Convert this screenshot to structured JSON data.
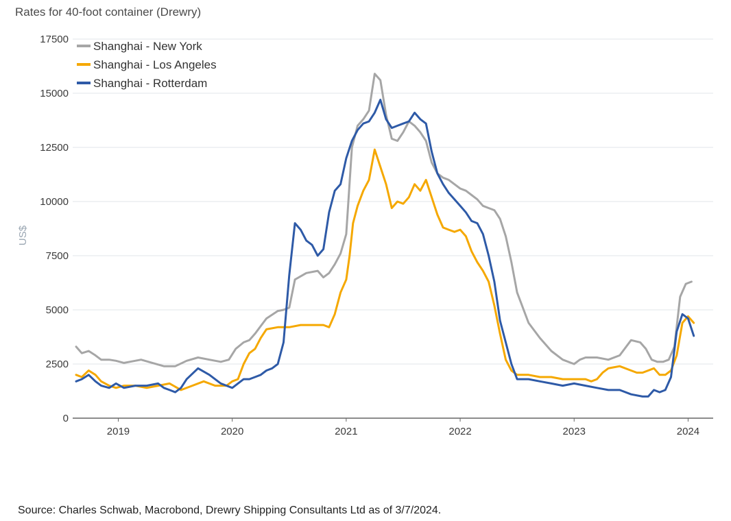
{
  "chart_data": {
    "type": "line",
    "title": "Rates for 40-foot container (Drewry)",
    "ylabel": "US$",
    "xlabel": "",
    "ylim": [
      0,
      17500
    ],
    "xlim": [
      2018.6,
      2024.22
    ],
    "yticks": [
      0,
      2500,
      5000,
      7500,
      10000,
      12500,
      15000,
      17500
    ],
    "yticklabels": [
      "0",
      "2500",
      "5000",
      "7500",
      "10000",
      "12500",
      "15000",
      "17500"
    ],
    "xticks": [
      2019,
      2020,
      2021,
      2022,
      2023,
      2024
    ],
    "xticklabels": [
      "2019",
      "2020",
      "2021",
      "2022",
      "2023",
      "2024"
    ],
    "grid": true,
    "legend_position": "top-left",
    "series": [
      {
        "name": "Shanghai - New York",
        "color": "#a6a6a6",
        "x": [
          2018.63,
          2018.68,
          2018.74,
          2018.8,
          2018.85,
          2018.92,
          2018.98,
          2019.05,
          2019.1,
          2019.2,
          2019.3,
          2019.4,
          2019.5,
          2019.6,
          2019.7,
          2019.8,
          2019.9,
          2019.97,
          2020.03,
          2020.1,
          2020.15,
          2020.2,
          2020.3,
          2020.4,
          2020.45,
          2020.5,
          2020.55,
          2020.65,
          2020.75,
          2020.8,
          2020.85,
          2020.9,
          2020.95,
          2021.0,
          2021.05,
          2021.1,
          2021.15,
          2021.2,
          2021.25,
          2021.3,
          2021.35,
          2021.4,
          2021.45,
          2021.5,
          2021.55,
          2021.6,
          2021.65,
          2021.7,
          2021.75,
          2021.8,
          2021.85,
          2021.9,
          2021.95,
          2022.0,
          2022.05,
          2022.1,
          2022.15,
          2022.2,
          2022.25,
          2022.3,
          2022.35,
          2022.4,
          2022.45,
          2022.5,
          2022.6,
          2022.7,
          2022.8,
          2022.9,
          2023.0,
          2023.05,
          2023.1,
          2023.15,
          2023.2,
          2023.3,
          2023.4,
          2023.5,
          2023.58,
          2023.63,
          2023.68,
          2023.73,
          2023.78,
          2023.83,
          2023.88,
          2023.93,
          2023.98,
          2024.03
        ],
        "y": [
          3300,
          3000,
          3100,
          2900,
          2700,
          2700,
          2650,
          2550,
          2600,
          2700,
          2550,
          2400,
          2400,
          2650,
          2800,
          2700,
          2600,
          2700,
          3200,
          3500,
          3600,
          3900,
          4600,
          4950,
          5000,
          5100,
          6400,
          6700,
          6800,
          6500,
          6700,
          7100,
          7600,
          8500,
          12500,
          13500,
          13800,
          14200,
          15900,
          15600,
          14000,
          12900,
          12800,
          13200,
          13700,
          13500,
          13200,
          12800,
          11800,
          11300,
          11100,
          11000,
          10800,
          10600,
          10500,
          10300,
          10100,
          9800,
          9700,
          9600,
          9200,
          8400,
          7200,
          5800,
          4400,
          3700,
          3100,
          2700,
          2500,
          2700,
          2800,
          2800,
          2800,
          2700,
          2900,
          3600,
          3500,
          3200,
          2700,
          2600,
          2600,
          2700,
          3300,
          5600,
          6200,
          6300
        ],
        "points_note": ""
      },
      {
        "name": "Shanghai - Los Angeles",
        "color": "#f5a800",
        "x": [
          2018.63,
          2018.68,
          2018.74,
          2018.8,
          2018.85,
          2018.92,
          2018.98,
          2019.05,
          2019.15,
          2019.25,
          2019.35,
          2019.45,
          2019.55,
          2019.65,
          2019.75,
          2019.85,
          2019.95,
          2020.0,
          2020.05,
          2020.1,
          2020.15,
          2020.2,
          2020.25,
          2020.3,
          2020.4,
          2020.5,
          2020.6,
          2020.7,
          2020.8,
          2020.85,
          2020.9,
          2020.95,
          2021.0,
          2021.03,
          2021.06,
          2021.1,
          2021.15,
          2021.2,
          2021.25,
          2021.3,
          2021.35,
          2021.4,
          2021.45,
          2021.5,
          2021.55,
          2021.6,
          2021.65,
          2021.7,
          2021.75,
          2021.8,
          2021.85,
          2021.9,
          2021.95,
          2022.0,
          2022.05,
          2022.1,
          2022.15,
          2022.2,
          2022.25,
          2022.3,
          2022.35,
          2022.4,
          2022.45,
          2022.5,
          2022.6,
          2022.7,
          2022.8,
          2022.9,
          2023.0,
          2023.1,
          2023.15,
          2023.2,
          2023.25,
          2023.3,
          2023.4,
          2023.5,
          2023.55,
          2023.6,
          2023.7,
          2023.75,
          2023.8,
          2023.85,
          2023.9,
          2023.95,
          2024.0,
          2024.05
        ],
        "y": [
          2000,
          1900,
          2200,
          2000,
          1700,
          1500,
          1400,
          1500,
          1500,
          1400,
          1500,
          1600,
          1300,
          1500,
          1700,
          1500,
          1500,
          1700,
          1800,
          2500,
          3000,
          3200,
          3700,
          4100,
          4200,
          4200,
          4300,
          4300,
          4300,
          4200,
          4800,
          5800,
          6400,
          7500,
          9000,
          9800,
          10500,
          11000,
          12400,
          11600,
          10800,
          9700,
          10000,
          9900,
          10200,
          10800,
          10500,
          11000,
          10200,
          9400,
          8800,
          8700,
          8600,
          8700,
          8400,
          7700,
          7200,
          6800,
          6300,
          5200,
          3900,
          2700,
          2200,
          2000,
          2000,
          1900,
          1900,
          1800,
          1800,
          1800,
          1700,
          1800,
          2100,
          2300,
          2400,
          2200,
          2100,
          2100,
          2300,
          2000,
          2000,
          2200,
          2900,
          4400,
          4700,
          4400
        ],
        "points_note": ""
      },
      {
        "name": "Shanghai - Rotterdam",
        "color": "#2e5aa7",
        "x": [
          2018.63,
          2018.68,
          2018.74,
          2018.8,
          2018.85,
          2018.92,
          2018.98,
          2019.05,
          2019.15,
          2019.25,
          2019.35,
          2019.4,
          2019.45,
          2019.5,
          2019.55,
          2019.6,
          2019.7,
          2019.8,
          2019.9,
          2020.0,
          2020.05,
          2020.1,
          2020.15,
          2020.2,
          2020.25,
          2020.3,
          2020.35,
          2020.4,
          2020.45,
          2020.5,
          2020.55,
          2020.6,
          2020.65,
          2020.7,
          2020.75,
          2020.8,
          2020.85,
          2020.9,
          2020.95,
          2021.0,
          2021.05,
          2021.1,
          2021.15,
          2021.2,
          2021.25,
          2021.3,
          2021.35,
          2021.4,
          2021.45,
          2021.5,
          2021.55,
          2021.6,
          2021.65,
          2021.7,
          2021.75,
          2021.8,
          2021.85,
          2021.9,
          2021.95,
          2022.0,
          2022.05,
          2022.1,
          2022.15,
          2022.2,
          2022.25,
          2022.3,
          2022.35,
          2022.4,
          2022.45,
          2022.5,
          2022.6,
          2022.7,
          2022.8,
          2022.9,
          2023.0,
          2023.1,
          2023.2,
          2023.3,
          2023.4,
          2023.5,
          2023.6,
          2023.65,
          2023.7,
          2023.75,
          2023.8,
          2023.85,
          2023.9,
          2023.95,
          2024.0,
          2024.05
        ],
        "y": [
          1700,
          1800,
          2000,
          1700,
          1500,
          1400,
          1600,
          1400,
          1500,
          1500,
          1600,
          1400,
          1300,
          1200,
          1400,
          1800,
          2300,
          2000,
          1600,
          1400,
          1600,
          1800,
          1800,
          1900,
          2000,
          2200,
          2300,
          2500,
          3500,
          6600,
          9000,
          8700,
          8200,
          8000,
          7500,
          7800,
          9500,
          10500,
          10800,
          12000,
          12800,
          13300,
          13600,
          13700,
          14100,
          14700,
          13800,
          13400,
          13500,
          13600,
          13700,
          14100,
          13800,
          13600,
          12300,
          11300,
          10800,
          10400,
          10100,
          9800,
          9500,
          9100,
          9000,
          8500,
          7500,
          6300,
          4500,
          3500,
          2500,
          1800,
          1800,
          1700,
          1600,
          1500,
          1600,
          1500,
          1400,
          1300,
          1300,
          1100,
          1000,
          1000,
          1300,
          1200,
          1300,
          1900,
          4000,
          4800,
          4600,
          3800
        ],
        "points_note": ""
      }
    ]
  },
  "source": "Source: Charles Schwab, Macrobond, Drewry Shipping Consultants Ltd as of 3/7/2024."
}
